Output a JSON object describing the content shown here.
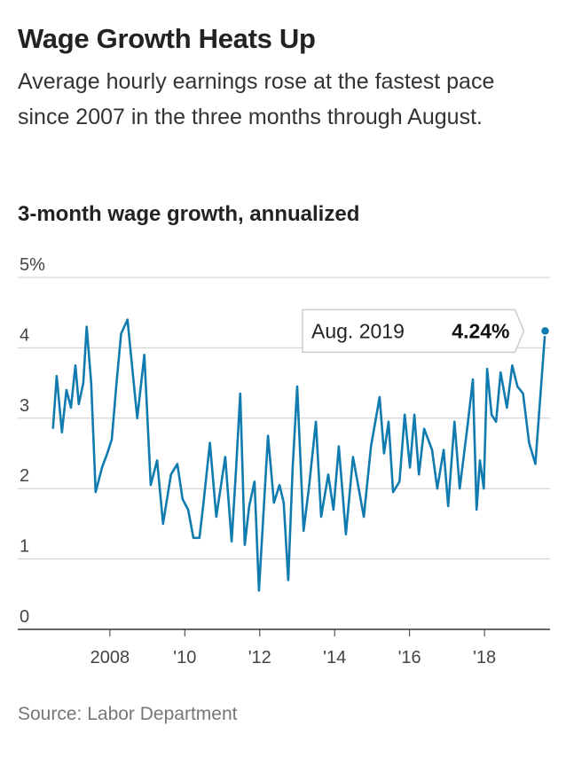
{
  "chart_data": {
    "type": "line",
    "title": "Wage Growth Heats Up",
    "subtitle": "Average hourly earnings rose at the fastest pace since 2007 in the three months through August.",
    "y_label": "3-month wage growth, annualized",
    "source": "Source: Labor Department",
    "annotation": {
      "text": "Aug. 2019",
      "value_label": "4.24%"
    },
    "x": [
      2006.48,
      2006.58,
      2006.72,
      2006.84,
      2006.96,
      2007.08,
      2007.17,
      2007.29,
      2007.38,
      2007.5,
      2007.62,
      2007.79,
      2007.93,
      2008.05,
      2008.17,
      2008.3,
      2008.47,
      2008.73,
      2008.92,
      2009.09,
      2009.26,
      2009.42,
      2009.63,
      2009.8,
      2009.94,
      2010.09,
      2010.23,
      2010.39,
      2010.5,
      2010.67,
      2010.84,
      2011.08,
      2011.25,
      2011.37,
      2011.48,
      2011.6,
      2011.72,
      2011.86,
      2011.98,
      2012.22,
      2012.38,
      2012.53,
      2012.64,
      2012.76,
      2012.88,
      2013.0,
      2013.17,
      2013.31,
      2013.5,
      2013.64,
      2013.83,
      2013.97,
      2014.11,
      2014.3,
      2014.49,
      2014.78,
      2014.97,
      2015.2,
      2015.32,
      2015.44,
      2015.56,
      2015.73,
      2015.87,
      2016.01,
      2016.13,
      2016.25,
      2016.39,
      2016.6,
      2016.74,
      2016.91,
      2017.03,
      2017.2,
      2017.34,
      2017.55,
      2017.69,
      2017.79,
      2017.88,
      2017.98,
      2018.07,
      2018.19,
      2018.31,
      2018.43,
      2018.6,
      2018.74,
      2018.88,
      2019.03,
      2019.19,
      2019.36,
      2019.62
    ],
    "series": [
      {
        "name": "3-month wage growth",
        "color": "#0f7bae",
        "values": [
          2.85,
          3.6,
          2.8,
          3.4,
          3.15,
          3.75,
          3.2,
          3.5,
          4.3,
          3.5,
          1.95,
          2.3,
          2.5,
          2.7,
          3.45,
          4.2,
          4.4,
          3.0,
          3.9,
          2.05,
          2.4,
          1.5,
          2.2,
          2.35,
          1.85,
          1.7,
          1.3,
          1.3,
          1.8,
          2.65,
          1.6,
          2.45,
          1.25,
          2.3,
          3.35,
          1.2,
          1.75,
          2.1,
          0.55,
          2.75,
          1.8,
          2.05,
          1.8,
          0.7,
          2.3,
          3.45,
          1.4,
          2.0,
          2.95,
          1.6,
          2.2,
          1.7,
          2.6,
          1.35,
          2.45,
          1.6,
          2.6,
          3.3,
          2.5,
          2.95,
          1.95,
          2.1,
          3.05,
          2.3,
          3.05,
          2.2,
          2.85,
          2.55,
          2.0,
          2.55,
          1.75,
          2.95,
          2.0,
          2.9,
          3.55,
          1.7,
          2.4,
          2.0,
          3.7,
          3.05,
          2.95,
          3.65,
          3.15,
          3.75,
          3.45,
          3.35,
          2.65,
          2.35,
          4.24
        ]
      }
    ],
    "xlim": [
      2005.54,
      2019.75
    ],
    "xticks": [
      2008,
      {
        "value": 2010,
        "label": "'10"
      },
      {
        "value": 2012,
        "label": "'12"
      },
      {
        "value": 2014,
        "label": "'14"
      },
      {
        "value": 2016,
        "label": "'16"
      },
      {
        "value": 2018,
        "label": "'18"
      }
    ],
    "ylim": [
      0,
      5
    ],
    "yticks": [
      0,
      1,
      2,
      3,
      4,
      {
        "value": 5,
        "label": "5%"
      }
    ],
    "grid": true
  }
}
